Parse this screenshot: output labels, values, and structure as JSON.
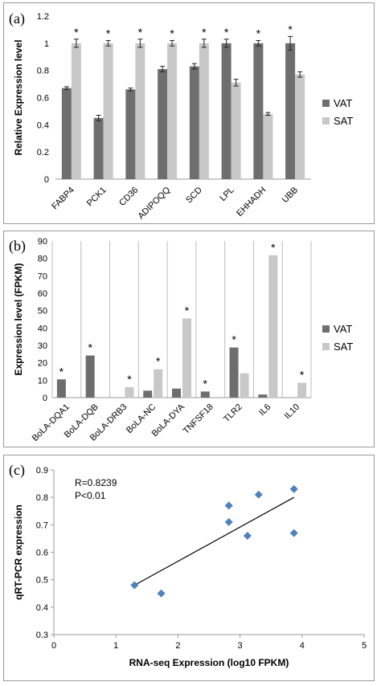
{
  "colors": {
    "vat": "#6e6e6e",
    "sat": "#c8c8c8",
    "point": "#4f81bd",
    "grid": "#bdbdbd"
  },
  "chart_data": [
    {
      "panel_label": "(a)",
      "type": "bar",
      "ylabel": "Relative Expression level",
      "ylim": [
        0,
        1.2
      ],
      "yticks": [
        "0",
        "0.2",
        "0.4",
        "0.6",
        "0.8",
        "1",
        "1.2"
      ],
      "categories": [
        "FABP4",
        "PCK1",
        "CD36",
        "ADIPOQQ",
        "SCD",
        "LPL",
        "EHHADH",
        "UBB"
      ],
      "series": [
        {
          "name": "VAT",
          "values": [
            0.67,
            0.45,
            0.66,
            0.81,
            0.83,
            1.0,
            1.0,
            1.0
          ],
          "errors": [
            0.01,
            0.02,
            0.01,
            0.02,
            0.02,
            0.03,
            0.02,
            0.05
          ]
        },
        {
          "name": "SAT",
          "values": [
            1.0,
            1.0,
            1.0,
            1.0,
            1.0,
            0.71,
            0.48,
            0.77
          ],
          "errors": [
            0.03,
            0.02,
            0.03,
            0.02,
            0.03,
            0.025,
            0.01,
            0.02
          ]
        }
      ],
      "significance": [
        "*",
        "*",
        "*",
        "*",
        "*",
        "*",
        "*",
        "*"
      ],
      "legend": "right"
    },
    {
      "panel_label": "(b)",
      "type": "bar",
      "ylabel": "Expression level (FPKM)",
      "ylim": [
        0,
        90
      ],
      "yticks": [
        "0",
        "10",
        "20",
        "30",
        "40",
        "50",
        "60",
        "70",
        "80",
        "90"
      ],
      "categories": [
        "BoLA-DQA1",
        "BoLA-DQB",
        "BoLA-DRB3",
        "BoLA-NC",
        "BoLA-DYA",
        "TNFSF18",
        "TLR2",
        "IL6",
        "IL10"
      ],
      "series": [
        {
          "name": "VAT",
          "values": [
            10.5,
            24.2,
            0,
            4.0,
            5.2,
            3.5,
            28.8,
            1.8,
            0
          ]
        },
        {
          "name": "SAT",
          "values": [
            0,
            0,
            6.0,
            16.3,
            45.5,
            0,
            14.0,
            81.8,
            8.5
          ]
        }
      ],
      "significance": [
        "*",
        "*",
        "*",
        "*",
        "*",
        "*",
        "*",
        "*",
        "*"
      ],
      "significance_on": [
        "VAT",
        "VAT",
        "SAT",
        "SAT",
        "SAT",
        "VAT",
        "VAT",
        "SAT",
        "SAT"
      ],
      "grid": "vertical separators",
      "legend": "right"
    },
    {
      "panel_label": "(c)",
      "type": "scatter",
      "xlabel": "RNA-seq Expression (log10 FPKM)",
      "ylabel": "qRT-PCR expression",
      "xlim": [
        0,
        5
      ],
      "ylim": [
        0.3,
        0.9
      ],
      "xticks": [
        "0",
        "1",
        "2",
        "3",
        "4",
        "5"
      ],
      "yticks": [
        "0.3",
        "0.4",
        "0.5",
        "0.6",
        "0.7",
        "0.8",
        "0.9"
      ],
      "points": [
        {
          "x": 1.3,
          "y": 0.48
        },
        {
          "x": 1.73,
          "y": 0.45
        },
        {
          "x": 2.82,
          "y": 0.77
        },
        {
          "x": 2.82,
          "y": 0.71
        },
        {
          "x": 3.12,
          "y": 0.66
        },
        {
          "x": 3.3,
          "y": 0.81
        },
        {
          "x": 3.87,
          "y": 0.83
        },
        {
          "x": 3.87,
          "y": 0.67
        }
      ],
      "trendline": {
        "x": [
          1.3,
          3.87
        ],
        "y": [
          0.48,
          0.8
        ]
      },
      "annotations": [
        "R=0.8239",
        "P<0.01"
      ]
    }
  ]
}
